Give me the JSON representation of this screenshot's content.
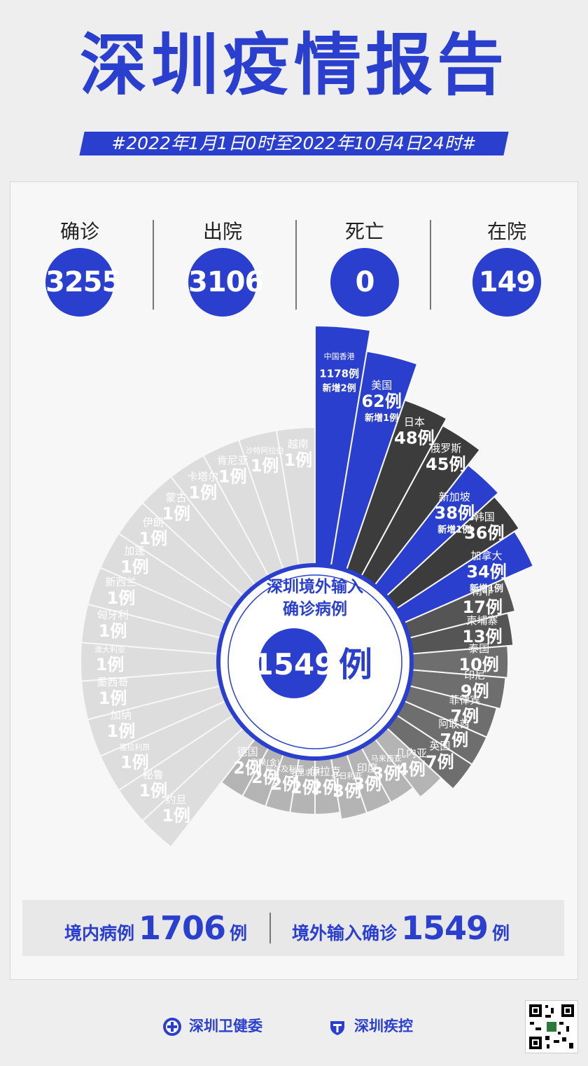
{
  "header": {
    "title": "深圳疫情报告",
    "subtitle": "#2022年1月1日0时至2022年10月4日24时#"
  },
  "stats": [
    {
      "label": "确诊",
      "value": "3255"
    },
    {
      "label": "出院",
      "value": "3106"
    },
    {
      "label": "死亡",
      "value": "0"
    },
    {
      "label": "在院",
      "value": "149"
    }
  ],
  "center": {
    "line1": "深圳境外输入",
    "line2": "确诊病例",
    "total": "1549",
    "unit": "例"
  },
  "summary": {
    "domestic_label": "境内病例",
    "domestic_value": "1706",
    "domestic_unit": "例",
    "imported_label": "境外输入确诊",
    "imported_value": "1549",
    "imported_unit": "例"
  },
  "footer": {
    "org1": "深圳卫健委",
    "org2": "深圳疾控"
  },
  "colors": {
    "accent": "#2a3fce",
    "dark": "#3c3c3c",
    "mid": "#6e6e6e",
    "grey": "#9a9a9a",
    "light": "#c8c8c8",
    "pale": "#dddddd"
  },
  "chart_data": {
    "type": "radial-bar",
    "unit": "例",
    "categories": [
      {
        "name": "中国香港",
        "value": 1178,
        "new": "新增2例",
        "highlight": true
      },
      {
        "name": "美国",
        "value": 62,
        "new": "新增1例",
        "highlight": true
      },
      {
        "name": "日本",
        "value": 48
      },
      {
        "name": "俄罗斯",
        "value": 45
      },
      {
        "name": "新加坡",
        "value": 38,
        "new": "新增1例",
        "highlight": true
      },
      {
        "name": "韩国",
        "value": 36
      },
      {
        "name": "加拿大",
        "value": 34,
        "new": "新增1例",
        "highlight": true
      },
      {
        "name": "南非",
        "value": 17
      },
      {
        "name": "柬埔寨",
        "value": 13
      },
      {
        "name": "泰国",
        "value": 10
      },
      {
        "name": "印尼",
        "value": 9
      },
      {
        "name": "菲律宾",
        "value": 7
      },
      {
        "name": "阿联酋",
        "value": 7
      },
      {
        "name": "英国",
        "value": 7
      },
      {
        "name": "几内亚",
        "value": 4
      },
      {
        "name": "马来西亚",
        "value": 3
      },
      {
        "name": "印度",
        "value": 3
      },
      {
        "name": "尼日利亚",
        "value": 3
      },
      {
        "name": "伊拉克",
        "value": 2
      },
      {
        "name": "毛里求斯",
        "value": 2
      },
      {
        "name": "阿尔及利亚",
        "value": 2
      },
      {
        "name": "刚果(金)",
        "value": 2
      },
      {
        "name": "德国",
        "value": 2
      },
      {
        "name": "约旦",
        "value": 1
      },
      {
        "name": "秘鲁",
        "value": 1
      },
      {
        "name": "塞拉利昂",
        "value": 1
      },
      {
        "name": "加纳",
        "value": 1
      },
      {
        "name": "墨西哥",
        "value": 1
      },
      {
        "name": "澳大利亚",
        "value": 1
      },
      {
        "name": "匈牙利",
        "value": 1
      },
      {
        "name": "新西兰",
        "value": 1
      },
      {
        "name": "加蓬",
        "value": 1
      },
      {
        "name": "伊朗",
        "value": 1
      },
      {
        "name": "蒙古",
        "value": 1
      },
      {
        "name": "卡塔尔",
        "value": 1
      },
      {
        "name": "肯尼亚",
        "value": 1
      },
      {
        "name": "沙特阿拉伯",
        "value": 1
      },
      {
        "name": "越南",
        "value": 1
      }
    ]
  }
}
